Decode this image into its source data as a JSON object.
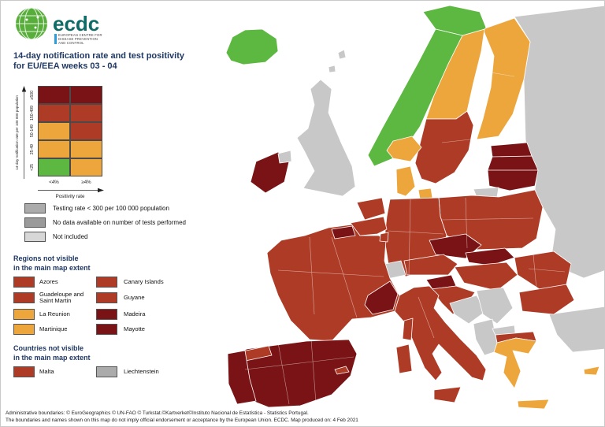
{
  "logo": {
    "wordmark": "ecdc",
    "tagline_lines": [
      "EUROPEAN CENTRE FOR",
      "DISEASE PREVENTION",
      "AND CONTROL"
    ]
  },
  "title": {
    "line1": "14-day notification rate and test positivity",
    "line2": "for EU/EEA weeks 03 - 04"
  },
  "colors": {
    "green": "#5CB840",
    "orange": "#EDA63C",
    "red": "#AE3B26",
    "darkred": "#7A1315",
    "grey_map": "#C8C8C8",
    "grey_testing": "#ABABAB",
    "grey_nodata": "#9A9A9A",
    "grey_notincluded": "#D7D7D7"
  },
  "matrix": {
    "y_axis_label": "14-day notification rate per 100 000 population",
    "x_axis_label": "Positivity rate",
    "col_labels": [
      "<4%",
      "≥4%"
    ],
    "rows": [
      {
        "label": "≥500",
        "cells": [
          "darkred",
          "darkred"
        ]
      },
      {
        "label": "150-499",
        "cells": [
          "red",
          "red"
        ]
      },
      {
        "label": "50-149",
        "cells": [
          "orange",
          "red"
        ]
      },
      {
        "label": "25-49",
        "cells": [
          "orange",
          "orange"
        ]
      },
      {
        "label": "<25",
        "cells": [
          "green",
          "orange"
        ]
      }
    ]
  },
  "grey_legend": [
    {
      "color": "grey_testing",
      "label": "Testing rate < 300 per 100 000 population"
    },
    {
      "color": "grey_nodata",
      "label": "No data available on number of tests performed"
    },
    {
      "color": "grey_notincluded",
      "label": "Not included"
    }
  ],
  "regions_heading": {
    "line1": "Regions not visible",
    "line2": "in the main map extent"
  },
  "regions": [
    {
      "label": "Azores",
      "color": "red"
    },
    {
      "label": "Canary Islands",
      "color": "red"
    },
    {
      "label": "Guadeloupe and Saint Martin",
      "color": "red"
    },
    {
      "label": "Guyane",
      "color": "red"
    },
    {
      "label": "La Reunion",
      "color": "orange"
    },
    {
      "label": "Madeira",
      "color": "darkred"
    },
    {
      "label": "Martinique",
      "color": "orange"
    },
    {
      "label": "Mayotte",
      "color": "darkred"
    }
  ],
  "countries_heading": {
    "line1": "Countries not visible",
    "line2": "in the main map extent"
  },
  "countries_legend": [
    {
      "label": "Malta",
      "color": "red"
    },
    {
      "label": "Liechtenstein",
      "color": "grey_testing"
    }
  ],
  "footer": {
    "line1": "Administrative boundaries: © EuroGeographics © UN-FAO © Turkstat.©Kartverket©Instituto Nacional de Estatística - Statistics Portugal.",
    "line2": "The boundaries and names shown on this map do not imply official endorsement or acceptance by the European Union. ECDC. Map produced on: 4 Feb 2021"
  },
  "map": {
    "countries": {
      "russia": "grey_map",
      "turkey": "grey_map",
      "finland": "orange",
      "sweden-north": "orange",
      "sweden-south": "red",
      "norway-north": "green",
      "norway-west": "green",
      "norway-south": "orange",
      "denmark": "orange",
      "denmark-island": "orange",
      "estonia": "darkred",
      "latvia": "darkred",
      "lithuania": "darkred",
      "kaliningrad": "grey_map",
      "poland": "red",
      "germany": "red",
      "czechia": "darkred",
      "slovakia": "darkred",
      "austria": "red",
      "switzerland": "grey_map",
      "hungary": "red",
      "slovenia": "darkred",
      "croatia": "red",
      "bosnia": "grey_map",
      "serbia": "grey_map",
      "albania-montenegro": "grey_map",
      "north-macedonia": "grey_map",
      "romania": "red",
      "bulgaria": "red",
      "greece-north": "red",
      "greece": "orange",
      "crete": "orange",
      "cyprus": "orange",
      "italy": "red",
      "sicily": "red",
      "sardinia": "red",
      "corsica": "red",
      "france": "red",
      "france-nord": "darkred",
      "france-se": "darkred",
      "netherlands": "red",
      "belgium": "red",
      "luxembourg": "red",
      "spain": "darkred",
      "spain-north": "red",
      "portugal": "darkred",
      "balearics": "red",
      "ireland": "darkred",
      "northern-ireland": "grey_map",
      "uk": "grey_map",
      "shetland": "grey_map",
      "orkney": "grey_map",
      "iceland": "green"
    }
  }
}
